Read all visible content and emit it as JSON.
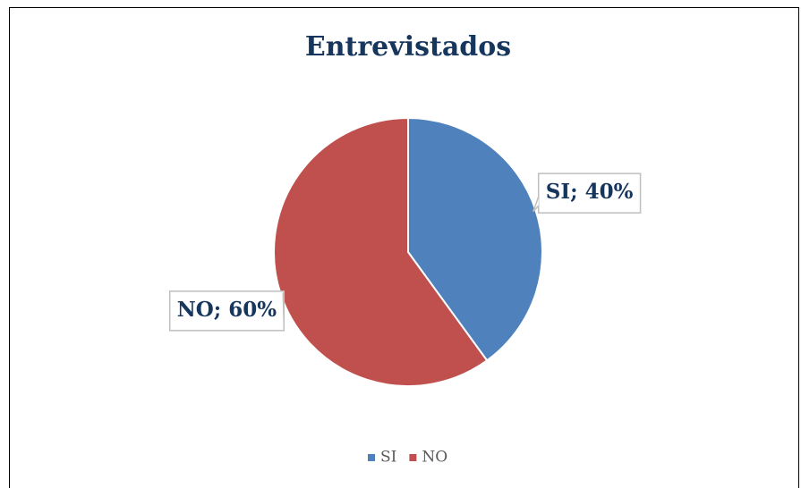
{
  "chart_data": {
    "type": "pie",
    "title": "Entrevistados",
    "categories": [
      "SI",
      "NO"
    ],
    "values": [
      40,
      60
    ],
    "value_labels": [
      "SI; 40%",
      "NO; 60%"
    ],
    "colors": [
      "#4f81bd",
      "#c0504d"
    ],
    "legend": "bottom"
  }
}
